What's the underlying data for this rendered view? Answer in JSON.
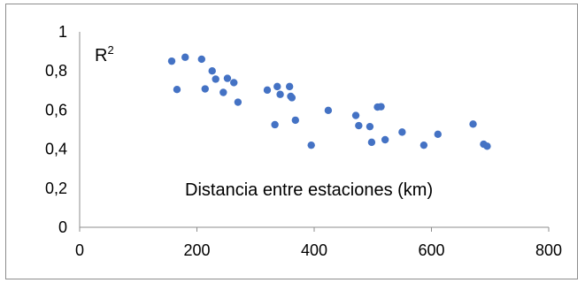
{
  "chart_data": {
    "type": "scatter",
    "title": "",
    "xlabel": "",
    "ylabel": "",
    "xlim": [
      0,
      800
    ],
    "ylim": [
      0,
      1
    ],
    "grid": false,
    "x_ticks": [
      "0",
      "200",
      "400",
      "600",
      "800"
    ],
    "y_ticks": [
      "0",
      "0,2",
      "0,4",
      "0,6",
      "0,8",
      "1"
    ],
    "marker_color": "#4472C4",
    "annotations": {
      "r2_base": "R",
      "r2_sup": "2",
      "distance_label": "Distancia entre estaciones (km)"
    },
    "series": [
      {
        "points": [
          {
            "x": 157,
            "y": 0.85
          },
          {
            "x": 166,
            "y": 0.705
          },
          {
            "x": 180,
            "y": 0.87
          },
          {
            "x": 208,
            "y": 0.86
          },
          {
            "x": 214,
            "y": 0.708
          },
          {
            "x": 226,
            "y": 0.8
          },
          {
            "x": 232,
            "y": 0.758
          },
          {
            "x": 245,
            "y": 0.69
          },
          {
            "x": 252,
            "y": 0.762
          },
          {
            "x": 263,
            "y": 0.74
          },
          {
            "x": 270,
            "y": 0.64
          },
          {
            "x": 320,
            "y": 0.702
          },
          {
            "x": 333,
            "y": 0.525
          },
          {
            "x": 337,
            "y": 0.72
          },
          {
            "x": 342,
            "y": 0.68
          },
          {
            "x": 358,
            "y": 0.72
          },
          {
            "x": 360,
            "y": 0.67
          },
          {
            "x": 362,
            "y": 0.663
          },
          {
            "x": 368,
            "y": 0.548
          },
          {
            "x": 395,
            "y": 0.42
          },
          {
            "x": 424,
            "y": 0.598
          },
          {
            "x": 471,
            "y": 0.572
          },
          {
            "x": 476,
            "y": 0.52
          },
          {
            "x": 495,
            "y": 0.515
          },
          {
            "x": 498,
            "y": 0.435
          },
          {
            "x": 508,
            "y": 0.615
          },
          {
            "x": 514,
            "y": 0.617
          },
          {
            "x": 521,
            "y": 0.448
          },
          {
            "x": 550,
            "y": 0.487
          },
          {
            "x": 587,
            "y": 0.42
          },
          {
            "x": 611,
            "y": 0.476
          },
          {
            "x": 671,
            "y": 0.528
          },
          {
            "x": 689,
            "y": 0.425
          },
          {
            "x": 695,
            "y": 0.415
          }
        ]
      }
    ]
  }
}
